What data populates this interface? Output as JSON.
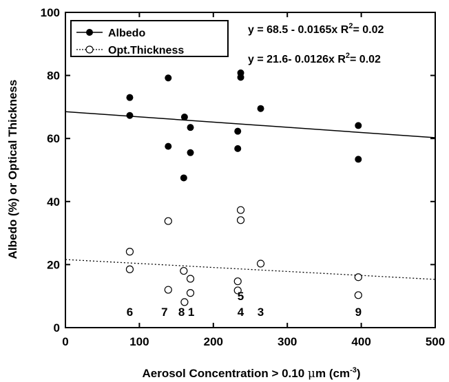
{
  "chart_data": {
    "type": "scatter",
    "xlabel_main": "Aerosol Concentration > 0.10 ",
    "xlabel_unit_greek": "μ",
    "xlabel_unit_m": "m (cm",
    "xlabel_unit_exp": "-3",
    "xlabel_unit_close": ")",
    "ylabel": "Albedo (%) or Optical Thickness",
    "xlim": [
      0,
      500
    ],
    "ylim": [
      0,
      100
    ],
    "xticks": [
      0,
      100,
      200,
      300,
      400,
      500
    ],
    "yticks": [
      0,
      20,
      40,
      60,
      80,
      100
    ],
    "grid": false,
    "legend_position": "top-left",
    "series": [
      {
        "name": "Albedo",
        "marker": "filled-circle",
        "points": [
          [
            87,
            73
          ],
          [
            87,
            67.3
          ],
          [
            139,
            79.2
          ],
          [
            139,
            57.5
          ],
          [
            160,
            47.5
          ],
          [
            161,
            66.8
          ],
          [
            169,
            63.5
          ],
          [
            169,
            55.5
          ],
          [
            233,
            62.3
          ],
          [
            233,
            56.8
          ],
          [
            237,
            80.8
          ],
          [
            237,
            79.4
          ],
          [
            264,
            69.5
          ],
          [
            396,
            64.1
          ],
          [
            396,
            53.4
          ]
        ],
        "fit": {
          "intercept": 68.5,
          "slope": -0.0165,
          "style": "solid"
        }
      },
      {
        "name": "Opt.Thickness",
        "marker": "open-circle",
        "points": [
          [
            87,
            24.1
          ],
          [
            87,
            18.5
          ],
          [
            139,
            33.8
          ],
          [
            139,
            12
          ],
          [
            160,
            18
          ],
          [
            161,
            8.1
          ],
          [
            169,
            15.5
          ],
          [
            169,
            11
          ],
          [
            233,
            14.7
          ],
          [
            233,
            11.8
          ],
          [
            237,
            37.3
          ],
          [
            237,
            34.1
          ],
          [
            264,
            20.3
          ],
          [
            396,
            16
          ],
          [
            396,
            10.3
          ]
        ],
        "fit": {
          "intercept": 21.6,
          "slope": -0.0126,
          "style": "dotted"
        }
      }
    ],
    "equations": {
      "albedo_pre": "y = 68.5 - 0.0165x R",
      "albedo_sup": "2",
      "albedo_post": "= 0.02",
      "opt_pre": "y = 21.6- 0.0126x R",
      "opt_sup": "2",
      "opt_post": "= 0.02"
    },
    "annotations": [
      {
        "text": "6",
        "x": 87,
        "y": 5
      },
      {
        "text": "7",
        "x": 134,
        "y": 5
      },
      {
        "text": "8",
        "x": 157,
        "y": 5
      },
      {
        "text": "1",
        "x": 170,
        "y": 5
      },
      {
        "text": "5",
        "x": 237,
        "y": 10
      },
      {
        "text": "4",
        "x": 237,
        "y": 5
      },
      {
        "text": "3",
        "x": 264,
        "y": 5
      },
      {
        "text": "9",
        "x": 396,
        "y": 5
      }
    ]
  }
}
